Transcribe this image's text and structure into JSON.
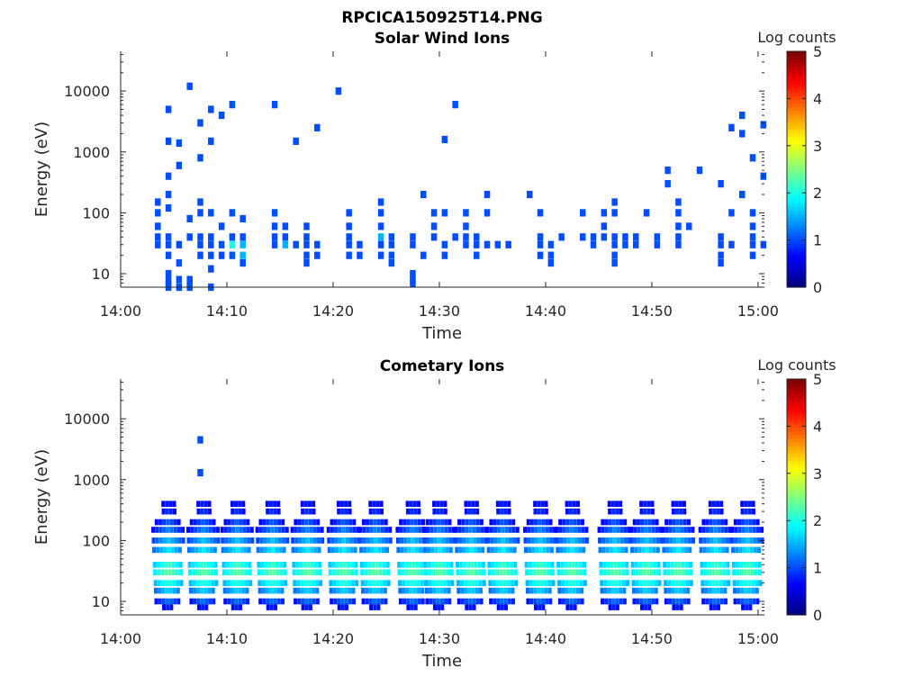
{
  "figure": {
    "title": "RPCICA150925T14.PNG"
  },
  "colors": {
    "background": "#ffffff",
    "axis": "#262626",
    "colormap": "jet",
    "colormap_stops": [
      "#00008f",
      "#0000ff",
      "#0080ff",
      "#00ffff",
      "#80ff80",
      "#ffff00",
      "#ff8000",
      "#ff0000",
      "#800000"
    ]
  },
  "chart_data": [
    {
      "type": "heatmap",
      "title": "Solar Wind Ions",
      "xlabel": "Time",
      "ylabel": "Energy (eV)",
      "x_scale": "time",
      "y_scale": "log",
      "xlim": [
        "14:00",
        "15:00"
      ],
      "ylim": [
        6,
        45000
      ],
      "xticks": [
        "14:00",
        "14:10",
        "14:20",
        "14:30",
        "14:40",
        "14:50",
        "15:00"
      ],
      "yticks": [
        "10",
        "100",
        "1000",
        "10000"
      ],
      "colorbar": {
        "label": "Log counts",
        "range": [
          0,
          5
        ],
        "ticks": [
          "0",
          "1",
          "2",
          "3",
          "4",
          "5"
        ]
      },
      "grid": false,
      "cells": [
        [
          "14:03",
          "100",
          "1"
        ],
        [
          "14:03",
          "60",
          "1"
        ],
        [
          "14:03",
          "40",
          "1"
        ],
        [
          "14:03",
          "30",
          "1"
        ],
        [
          "14:03",
          "150",
          "1"
        ],
        [
          "14:04",
          "40",
          "1"
        ],
        [
          "14:04",
          "30",
          "1"
        ],
        [
          "14:04",
          "20",
          "1"
        ],
        [
          "14:04",
          "200",
          "1"
        ],
        [
          "14:04",
          "120",
          "1"
        ],
        [
          "14:04",
          "5000",
          "1"
        ],
        [
          "14:04",
          "10",
          "1"
        ],
        [
          "14:04",
          "8",
          "1"
        ],
        [
          "14:04",
          "7",
          "1"
        ],
        [
          "14:04",
          "6",
          "1"
        ],
        [
          "14:04",
          "1500",
          "1"
        ],
        [
          "14:04",
          "400",
          "1"
        ],
        [
          "14:05",
          "1400",
          "1"
        ],
        [
          "14:05",
          "600",
          "1"
        ],
        [
          "14:05",
          "30",
          "1"
        ],
        [
          "14:05",
          "15",
          "1"
        ],
        [
          "14:05",
          "8",
          "1"
        ],
        [
          "14:05",
          "6",
          "1"
        ],
        [
          "14:06",
          "8",
          "1"
        ],
        [
          "14:06",
          "7",
          "1"
        ],
        [
          "14:06",
          "6",
          "1"
        ],
        [
          "14:06",
          "80",
          "1"
        ],
        [
          "14:06",
          "40",
          "1"
        ],
        [
          "14:06",
          "12000",
          "1"
        ],
        [
          "14:07",
          "40",
          "1"
        ],
        [
          "14:07",
          "30",
          "1"
        ],
        [
          "14:07",
          "20",
          "1"
        ],
        [
          "14:07",
          "150",
          "1"
        ],
        [
          "14:07",
          "100",
          "1"
        ],
        [
          "14:07",
          "3000",
          "1"
        ],
        [
          "14:07",
          "800",
          "1"
        ],
        [
          "14:08",
          "40",
          "1"
        ],
        [
          "14:08",
          "30",
          "1"
        ],
        [
          "14:08",
          "20",
          "1"
        ],
        [
          "14:08",
          "12",
          "1"
        ],
        [
          "14:08",
          "6",
          "1"
        ],
        [
          "14:08",
          "100",
          "1"
        ],
        [
          "14:08",
          "5000",
          "1"
        ],
        [
          "14:08",
          "1500",
          "1"
        ],
        [
          "14:09",
          "30",
          "1"
        ],
        [
          "14:09",
          "20",
          "1"
        ],
        [
          "14:09",
          "60",
          "1"
        ],
        [
          "14:09",
          "4000",
          "1"
        ],
        [
          "14:10",
          "40",
          "1"
        ],
        [
          "14:10",
          "30",
          "2"
        ],
        [
          "14:10",
          "20",
          "1"
        ],
        [
          "14:10",
          "100",
          "1"
        ],
        [
          "14:10",
          "6000",
          "1"
        ],
        [
          "14:11",
          "40",
          "1"
        ],
        [
          "14:11",
          "30",
          "1.5"
        ],
        [
          "14:11",
          "20",
          "1.5"
        ],
        [
          "14:11",
          "15",
          "1"
        ],
        [
          "14:11",
          "80",
          "1"
        ],
        [
          "14:14",
          "40",
          "1"
        ],
        [
          "14:14",
          "30",
          "1"
        ],
        [
          "14:14",
          "60",
          "1"
        ],
        [
          "14:14",
          "100",
          "1"
        ],
        [
          "14:14",
          "6000",
          "1"
        ],
        [
          "14:15",
          "40",
          "1"
        ],
        [
          "14:15",
          "30",
          "1.5"
        ],
        [
          "14:15",
          "60",
          "1"
        ],
        [
          "14:16",
          "30",
          "1"
        ],
        [
          "14:16",
          "1500",
          "1"
        ],
        [
          "14:17",
          "40",
          "1"
        ],
        [
          "14:17",
          "30",
          "1"
        ],
        [
          "14:17",
          "20",
          "1"
        ],
        [
          "14:17",
          "15",
          "1"
        ],
        [
          "14:17",
          "60",
          "1"
        ],
        [
          "14:18",
          "30",
          "1"
        ],
        [
          "14:18",
          "20",
          "1"
        ],
        [
          "14:18",
          "2500",
          "1"
        ],
        [
          "14:20",
          "10000",
          "1"
        ],
        [
          "14:21",
          "40",
          "1"
        ],
        [
          "14:21",
          "30",
          "1"
        ],
        [
          "14:21",
          "20",
          "1"
        ],
        [
          "14:21",
          "60",
          "1"
        ],
        [
          "14:21",
          "100",
          "1"
        ],
        [
          "14:22",
          "30",
          "1"
        ],
        [
          "14:22",
          "20",
          "1"
        ],
        [
          "14:24",
          "150",
          "1"
        ],
        [
          "14:24",
          "100",
          "1"
        ],
        [
          "14:24",
          "60",
          "1"
        ],
        [
          "14:24",
          "40",
          "1.5"
        ],
        [
          "14:24",
          "30",
          "1"
        ],
        [
          "14:24",
          "20",
          "1"
        ],
        [
          "14:25",
          "40",
          "1"
        ],
        [
          "14:25",
          "30",
          "1"
        ],
        [
          "14:25",
          "20",
          "1"
        ],
        [
          "14:25",
          "15",
          "1"
        ],
        [
          "14:27",
          "40",
          "1"
        ],
        [
          "14:27",
          "30",
          "1"
        ],
        [
          "14:27",
          "10",
          "1"
        ],
        [
          "14:27",
          "8",
          "1"
        ],
        [
          "14:27",
          "7",
          "1"
        ],
        [
          "14:28",
          "20",
          "1"
        ],
        [
          "14:28",
          "200",
          "1"
        ],
        [
          "14:29",
          "100",
          "1"
        ],
        [
          "14:29",
          "60",
          "1"
        ],
        [
          "14:29",
          "40",
          "1"
        ],
        [
          "14:30",
          "100",
          "1"
        ],
        [
          "14:30",
          "30",
          "1"
        ],
        [
          "14:30",
          "20",
          "1"
        ],
        [
          "14:30",
          "1600",
          "1"
        ],
        [
          "14:31",
          "40",
          "1"
        ],
        [
          "14:31",
          "6000",
          "1"
        ],
        [
          "14:32",
          "100",
          "1"
        ],
        [
          "14:32",
          "60",
          "1"
        ],
        [
          "14:32",
          "40",
          "1"
        ],
        [
          "14:32",
          "30",
          "1"
        ],
        [
          "14:33",
          "40",
          "1"
        ],
        [
          "14:33",
          "30",
          "1"
        ],
        [
          "14:33",
          "20",
          "1"
        ],
        [
          "14:34",
          "200",
          "1"
        ],
        [
          "14:34",
          "100",
          "1"
        ],
        [
          "14:34",
          "30",
          "1"
        ],
        [
          "14:35",
          "30",
          "1"
        ],
        [
          "14:36",
          "30",
          "1"
        ],
        [
          "14:38",
          "200",
          "1"
        ],
        [
          "14:39",
          "100",
          "1"
        ],
        [
          "14:39",
          "40",
          "1"
        ],
        [
          "14:39",
          "30",
          "1"
        ],
        [
          "14:39",
          "20",
          "1"
        ],
        [
          "14:40",
          "30",
          "1"
        ],
        [
          "14:40",
          "20",
          "1"
        ],
        [
          "14:40",
          "15",
          "1"
        ],
        [
          "14:41",
          "40",
          "1"
        ],
        [
          "14:43",
          "100",
          "1"
        ],
        [
          "14:43",
          "40",
          "1"
        ],
        [
          "14:44",
          "40",
          "1"
        ],
        [
          "14:44",
          "30",
          "1"
        ],
        [
          "14:45",
          "100",
          "1"
        ],
        [
          "14:45",
          "60",
          "1"
        ],
        [
          "14:45",
          "40",
          "1"
        ],
        [
          "14:46",
          "150",
          "1"
        ],
        [
          "14:46",
          "100",
          "1"
        ],
        [
          "14:46",
          "40",
          "1"
        ],
        [
          "14:46",
          "30",
          "1"
        ],
        [
          "14:46",
          "20",
          "1"
        ],
        [
          "14:46",
          "15",
          "1"
        ],
        [
          "14:47",
          "40",
          "1"
        ],
        [
          "14:47",
          "30",
          "1"
        ],
        [
          "14:48",
          "40",
          "1"
        ],
        [
          "14:48",
          "30",
          "1"
        ],
        [
          "14:49",
          "100",
          "1"
        ],
        [
          "14:50",
          "40",
          "1"
        ],
        [
          "14:50",
          "30",
          "1"
        ],
        [
          "14:51",
          "500",
          "1"
        ],
        [
          "14:51",
          "300",
          "1"
        ],
        [
          "14:52",
          "150",
          "1"
        ],
        [
          "14:52",
          "100",
          "1"
        ],
        [
          "14:52",
          "60",
          "1"
        ],
        [
          "14:52",
          "40",
          "1"
        ],
        [
          "14:52",
          "30",
          "1"
        ],
        [
          "14:53",
          "60",
          "1"
        ],
        [
          "14:54",
          "500",
          "1"
        ],
        [
          "14:56",
          "40",
          "1"
        ],
        [
          "14:56",
          "30",
          "1"
        ],
        [
          "14:56",
          "20",
          "1"
        ],
        [
          "14:56",
          "15",
          "1"
        ],
        [
          "14:56",
          "300",
          "1"
        ],
        [
          "14:57",
          "30",
          "1"
        ],
        [
          "14:57",
          "2500",
          "1"
        ],
        [
          "14:57",
          "100",
          "1"
        ],
        [
          "14:58",
          "4000",
          "1"
        ],
        [
          "14:58",
          "2000",
          "1"
        ],
        [
          "14:58",
          "200",
          "1"
        ],
        [
          "14:59",
          "60",
          "1"
        ],
        [
          "14:59",
          "40",
          "1"
        ],
        [
          "14:59",
          "30",
          "1"
        ],
        [
          "14:59",
          "20",
          "1"
        ],
        [
          "14:59",
          "100",
          "1"
        ],
        [
          "14:59",
          "800",
          "1"
        ],
        [
          "15:00",
          "400",
          "1"
        ],
        [
          "15:00",
          "30",
          "1"
        ],
        [
          "15:00",
          "2800",
          "1"
        ]
      ]
    },
    {
      "type": "heatmap",
      "title": "Cometary Ions",
      "xlabel": "Time",
      "ylabel": "Energy (eV)",
      "x_scale": "time",
      "y_scale": "log",
      "xlim": [
        "14:00",
        "15:00"
      ],
      "ylim": [
        6,
        45000
      ],
      "xticks": [
        "14:00",
        "14:10",
        "14:20",
        "14:30",
        "14:40",
        "14:50",
        "15:00"
      ],
      "yticks": [
        "10",
        "100",
        "1000",
        "10000"
      ],
      "colorbar": {
        "label": "Log counts",
        "range": [
          0,
          5
        ],
        "ticks": [
          "0",
          "1",
          "2",
          "3",
          "4",
          "5"
        ]
      },
      "grid": false,
      "cells": [
        [
          "14:07",
          "4500",
          "1"
        ],
        [
          "14:07",
          "1300",
          "1"
        ]
      ],
      "bursts_center_min": [
        4.5,
        7.8,
        11,
        14.3,
        17.6,
        21,
        24,
        27.5,
        30,
        33,
        36,
        39.5,
        42.5,
        46.5,
        49.5,
        52.5,
        56,
        59
      ]
    }
  ]
}
